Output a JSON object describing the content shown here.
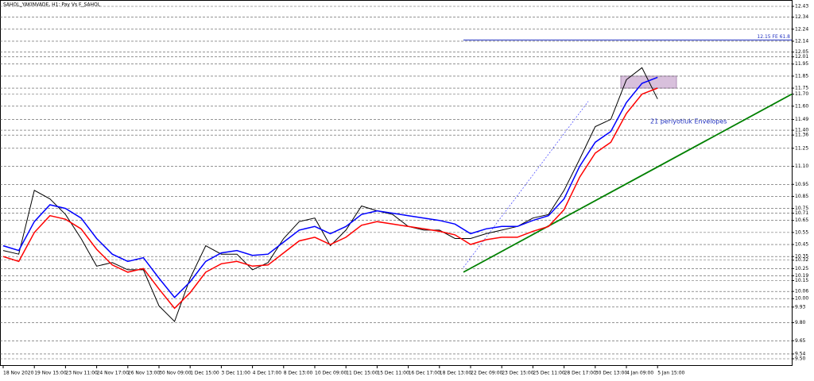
{
  "chart_data": {
    "type": "line",
    "title": "SAHOL_YAKINVADE, H1: Pay Vs F_SAHOL",
    "categories": [
      "18 Nov 2020",
      null,
      "19 Nov 15:00",
      null,
      "23 Nov 11:00",
      null,
      "24 Nov 17:00",
      null,
      "26 Nov 13:00",
      null,
      "30 Nov 09:00",
      null,
      "1 Dec 15:00",
      null,
      "3 Dec 11:00",
      null,
      "4 Dec 17:00",
      null,
      "8 Dec 13:00",
      null,
      "10 Dec 09:00",
      null,
      "11 Dec 15:00",
      null,
      "15 Dec 11:00",
      null,
      "16 Dec 17:00",
      null,
      "18 Dec 13:00",
      null,
      "22 Dec 09:00",
      null,
      "23 Dec 15:00",
      null,
      "25 Dec 11:00",
      null,
      "28 Dec 17:00",
      null,
      "30 Dec 13:00",
      null,
      "4 Jan 09:00",
      null,
      "5 Jan 15:00",
      null
    ],
    "series": [
      {
        "color": "#000000",
        "values": [
          10.4,
          10.37,
          10.9,
          10.83,
          10.7,
          10.5,
          10.27,
          10.3,
          10.24,
          10.24,
          9.94,
          9.81,
          10.17,
          10.44,
          10.37,
          10.37,
          10.24,
          10.3,
          10.5,
          10.64,
          10.67,
          10.44,
          10.57,
          10.77,
          10.73,
          10.7,
          10.6,
          10.57,
          10.57,
          10.5,
          10.5,
          10.54,
          10.57,
          10.6,
          10.67,
          10.7,
          10.9,
          11.16,
          11.43,
          11.49,
          11.82,
          11.92,
          11.66,
          null
        ]
      },
      {
        "color": "#0000ff",
        "values": [
          10.44,
          10.4,
          10.64,
          10.78,
          10.75,
          10.67,
          10.5,
          10.37,
          10.31,
          10.34,
          10.17,
          10.01,
          10.14,
          10.31,
          10.38,
          10.4,
          10.36,
          10.37,
          10.47,
          10.57,
          10.6,
          10.54,
          10.6,
          10.7,
          10.73,
          10.71,
          10.69,
          10.67,
          10.65,
          10.62,
          10.54,
          10.58,
          10.6,
          10.6,
          10.65,
          10.69,
          10.83,
          11.1,
          11.3,
          11.39,
          11.63,
          11.79,
          11.84,
          null
        ]
      },
      {
        "color": "#ff0000",
        "values": [
          10.35,
          10.31,
          10.55,
          10.69,
          10.66,
          10.58,
          10.41,
          10.28,
          10.22,
          10.25,
          10.08,
          9.92,
          10.05,
          10.22,
          10.29,
          10.31,
          10.27,
          10.28,
          10.38,
          10.48,
          10.51,
          10.45,
          10.51,
          10.61,
          10.64,
          10.62,
          10.6,
          10.58,
          10.56,
          10.53,
          10.45,
          10.49,
          10.51,
          10.51,
          10.56,
          10.6,
          10.74,
          11.01,
          11.21,
          11.3,
          11.54,
          11.7,
          11.75,
          null
        ]
      }
    ],
    "ylim": [
      9.5,
      12.43
    ],
    "yticks": [
      12.43,
      12.34,
      12.24,
      12.14,
      12.05,
      12.01,
      11.95,
      11.85,
      11.75,
      {
        "value": 11.7,
        "label": "11.70"
      },
      {
        "value": 11.6,
        "label": "11.60"
      },
      11.49,
      {
        "value": 11.4,
        "label": "11.40"
      },
      11.36,
      11.25,
      {
        "value": 11.1,
        "label": "11.10"
      },
      10.95,
      10.85,
      10.75,
      10.71,
      10.65,
      10.55,
      10.45,
      10.35,
      10.32,
      10.25,
      10.19,
      10.15,
      10.06,
      {
        "value": 10,
        "label": "10.00"
      },
      9.93,
      {
        "value": 9.8,
        "label": "9.80"
      },
      9.65,
      9.54,
      {
        "value": 9.5,
        "label": "9.50"
      }
    ],
    "grid": true,
    "fibo_level": {
      "value": 12.15,
      "label": "12.15 FE 61.8"
    },
    "zone": [
      11.75,
      11.85
    ],
    "trendline": {
      "start": 10.22,
      "end": 11.7,
      "color": "#008000"
    },
    "projection": {
      "start": 10.26,
      "end": 11.64,
      "color": "#4040ff"
    },
    "annotation": "21 periyotluk Envelopes"
  }
}
